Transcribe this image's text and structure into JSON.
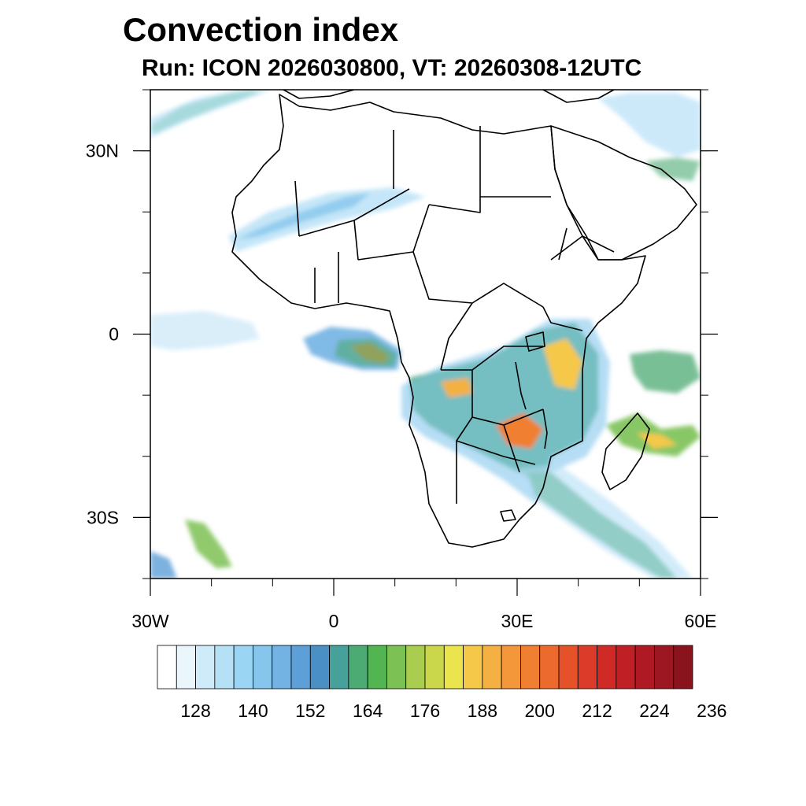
{
  "title": "Convection index",
  "subtitle": "Run: ICON 2026030800,  VT: 20260308-12UTC",
  "map": {
    "projection": "cylindrical-equidistant",
    "lon_range": [
      -30,
      60
    ],
    "lat_range": [
      -40,
      40
    ],
    "lon_ticks": [
      {
        "value": -30,
        "label": "30W"
      },
      {
        "value": 0,
        "label": "0"
      },
      {
        "value": 30,
        "label": "30E"
      },
      {
        "value": 60,
        "label": "60E"
      }
    ],
    "lat_ticks": [
      {
        "value": 30,
        "label": "30N"
      },
      {
        "value": 0,
        "label": "0"
      },
      {
        "value": -30,
        "label": "30S"
      }
    ],
    "minor_lon_step": 10,
    "minor_lat_step": 10,
    "field": "convection index",
    "coastline_color": "#000000"
  },
  "colorbar": {
    "colors": [
      "#ffffff",
      "#eaf6fc",
      "#cfeaf8",
      "#b6e0f6",
      "#9ad6f4",
      "#86c6ec",
      "#72b3e3",
      "#5d9fd7",
      "#4b8fc7",
      "#47a19b",
      "#4caa73",
      "#52b552",
      "#7cc154",
      "#a9cd4f",
      "#cad74b",
      "#ebe44d",
      "#f6c84a",
      "#f5b043",
      "#f4963a",
      "#f07f32",
      "#ec6a2d",
      "#e5522a",
      "#dc3b29",
      "#d02a27",
      "#c01f25",
      "#ae1923",
      "#9c1721",
      "#8a141e"
    ],
    "labels": [
      "128",
      "140",
      "152",
      "164",
      "176",
      "188",
      "200",
      "212",
      "224",
      "236"
    ]
  }
}
